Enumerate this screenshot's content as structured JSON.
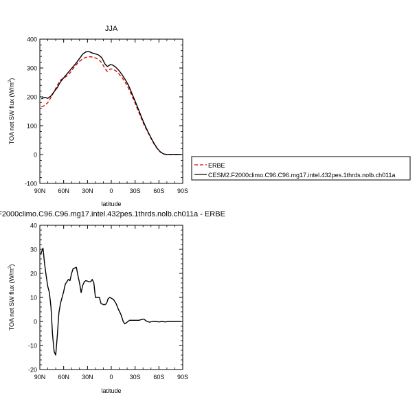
{
  "chart_data": [
    {
      "type": "line",
      "title": "JJA",
      "xlabel": "latitude",
      "ylabel_main": "TOA net SW flux (W/m",
      "ylabel_sup": "2",
      "ylabel_tail": ")",
      "xlim": [
        90,
        -90
      ],
      "ylim": [
        -100,
        400
      ],
      "x_ticks": [
        90,
        60,
        30,
        0,
        -30,
        -60,
        -90
      ],
      "x_tick_labels": [
        "90N",
        "60N",
        "30N",
        "0",
        "30S",
        "60S",
        "90S"
      ],
      "y_ticks": [
        -100,
        0,
        100,
        200,
        300,
        400
      ],
      "y_tick_labels": [
        "-100",
        "0",
        "100",
        "200",
        "300",
        "400"
      ],
      "legend": {
        "placement": "right"
      },
      "series": [
        {
          "name": "ERBE",
          "color": "#e00000",
          "dash": "dashed",
          "points": [
            [
              88,
              165
            ],
            [
              84,
              170
            ],
            [
              80,
              180
            ],
            [
              76,
              198
            ],
            [
              72,
              218
            ],
            [
              68,
              240
            ],
            [
              64,
              258
            ],
            [
              60,
              265
            ],
            [
              56,
              272
            ],
            [
              52,
              283
            ],
            [
              48,
              298
            ],
            [
              44,
              312
            ],
            [
              40,
              323
            ],
            [
              36,
              332
            ],
            [
              32,
              337
            ],
            [
              28,
              339
            ],
            [
              24,
              338
            ],
            [
              20,
              335
            ],
            [
              16,
              330
            ],
            [
              12,
              318
            ],
            [
              8,
              298
            ],
            [
              5,
              288
            ],
            [
              1,
              297
            ],
            [
              -2,
              296
            ],
            [
              -6,
              290
            ],
            [
              -10,
              278
            ],
            [
              -14,
              265
            ],
            [
              -18,
              248
            ],
            [
              -22,
              228
            ],
            [
              -26,
              204
            ],
            [
              -30,
              178
            ],
            [
              -34,
              151
            ],
            [
              -38,
              124
            ],
            [
              -42,
              99
            ],
            [
              -46,
              77
            ],
            [
              -50,
              56
            ],
            [
              -54,
              36
            ],
            [
              -58,
              20
            ],
            [
              -62,
              8
            ],
            [
              -66,
              2
            ],
            [
              -70,
              0
            ],
            [
              -76,
              0
            ],
            [
              -84,
              0
            ],
            [
              -88,
              0
            ]
          ]
        },
        {
          "name": "CESM2.F2000climo.C96.C96.mg17.intel.432pes.1thrds.nolb.ch011a",
          "color": "#000000",
          "dash": "solid",
          "points": [
            [
              88,
              193
            ],
            [
              84,
              198
            ],
            [
              80,
              195
            ],
            [
              76,
              203
            ],
            [
              72,
              218
            ],
            [
              68,
              232
            ],
            [
              64,
              252
            ],
            [
              60,
              266
            ],
            [
              56,
              279
            ],
            [
              52,
              292
            ],
            [
              48,
              305
            ],
            [
              44,
              318
            ],
            [
              40,
              333
            ],
            [
              36,
              348
            ],
            [
              32,
              356
            ],
            [
              28,
              357
            ],
            [
              24,
              352
            ],
            [
              20,
              349
            ],
            [
              16,
              345
            ],
            [
              12,
              336
            ],
            [
              8,
              314
            ],
            [
              5,
              305
            ],
            [
              1,
              312
            ],
            [
              -2,
              310
            ],
            [
              -6,
              302
            ],
            [
              -10,
              290
            ],
            [
              -14,
              275
            ],
            [
              -18,
              258
            ],
            [
              -22,
              238
            ],
            [
              -26,
              212
            ],
            [
              -30,
              185
            ],
            [
              -34,
              158
            ],
            [
              -38,
              130
            ],
            [
              -42,
              104
            ],
            [
              -46,
              80
            ],
            [
              -50,
              58
            ],
            [
              -54,
              38
            ],
            [
              -58,
              21
            ],
            [
              -62,
              9
            ],
            [
              -66,
              2
            ],
            [
              -70,
              0
            ],
            [
              -76,
              0
            ],
            [
              -84,
              0
            ],
            [
              -88,
              0
            ]
          ]
        }
      ]
    },
    {
      "type": "line",
      "title": "F2000climo.C96.C96.mg17.intel.432pes.1thrds.nolb.ch011a - ERBE",
      "xlabel": "latitude",
      "ylabel_main": "TOA net SW flux (W/m",
      "ylabel_sup": "2",
      "ylabel_tail": ")",
      "xlim": [
        90,
        -90
      ],
      "ylim": [
        -20,
        40
      ],
      "x_ticks": [
        90,
        60,
        30,
        0,
        -30,
        -60,
        -90
      ],
      "x_tick_labels": [
        "90N",
        "60N",
        "30N",
        "0",
        "30S",
        "60S",
        "90S"
      ],
      "y_ticks": [
        -20,
        -10,
        0,
        10,
        20,
        30,
        40
      ],
      "y_tick_labels": [
        "-20",
        "-10",
        "0",
        "10",
        "20",
        "30",
        "40"
      ],
      "series": [
        {
          "color": "#000000",
          "dash": "solid",
          "points": [
            [
              89,
              28
            ],
            [
              86,
              30.5
            ],
            [
              84,
              24
            ],
            [
              82,
              19
            ],
            [
              80,
              14.5
            ],
            [
              78,
              12
            ],
            [
              76,
              6
            ],
            [
              74,
              -5.5
            ],
            [
              72,
              -12.5
            ],
            [
              70,
              -14
            ],
            [
              68,
              -6
            ],
            [
              66,
              3.5
            ],
            [
              64,
              7.5
            ],
            [
              62,
              10
            ],
            [
              60,
              12.5
            ],
            [
              58,
              15.5
            ],
            [
              56,
              16.5
            ],
            [
              54,
              17.5
            ],
            [
              52,
              17
            ],
            [
              50,
              20
            ],
            [
              48,
              22
            ],
            [
              44,
              22.5
            ],
            [
              42,
              19
            ],
            [
              40,
              16
            ],
            [
              38,
              12
            ],
            [
              36,
              15
            ],
            [
              34,
              16.5
            ],
            [
              32,
              17
            ],
            [
              28,
              16.5
            ],
            [
              26,
              16.5
            ],
            [
              24,
              17.5
            ],
            [
              22,
              16
            ],
            [
              20,
              10
            ],
            [
              17,
              10
            ],
            [
              15,
              10
            ],
            [
              13,
              7.5
            ],
            [
              10,
              7
            ],
            [
              8,
              7
            ],
            [
              6,
              7.5
            ],
            [
              4,
              9.5
            ],
            [
              2,
              10
            ],
            [
              -1,
              9.5
            ],
            [
              -3,
              9
            ],
            [
              -6,
              7.5
            ],
            [
              -9,
              5
            ],
            [
              -12,
              3
            ],
            [
              -15,
              0
            ],
            [
              -17,
              -1
            ],
            [
              -19,
              -0.5
            ],
            [
              -23,
              0.5
            ],
            [
              -27,
              0.5
            ],
            [
              -31,
              0.5
            ],
            [
              -35,
              0.5
            ],
            [
              -38,
              0.8
            ],
            [
              -41,
              1
            ],
            [
              -44,
              0.2
            ],
            [
              -48,
              -0.3
            ],
            [
              -52,
              0
            ],
            [
              -56,
              0
            ],
            [
              -60,
              -0.2
            ],
            [
              -64,
              0
            ],
            [
              -68,
              -0.2
            ],
            [
              -72,
              0
            ],
            [
              -76,
              0
            ],
            [
              -80,
              0
            ],
            [
              -84,
              0
            ],
            [
              -88,
              0
            ]
          ]
        }
      ]
    }
  ]
}
